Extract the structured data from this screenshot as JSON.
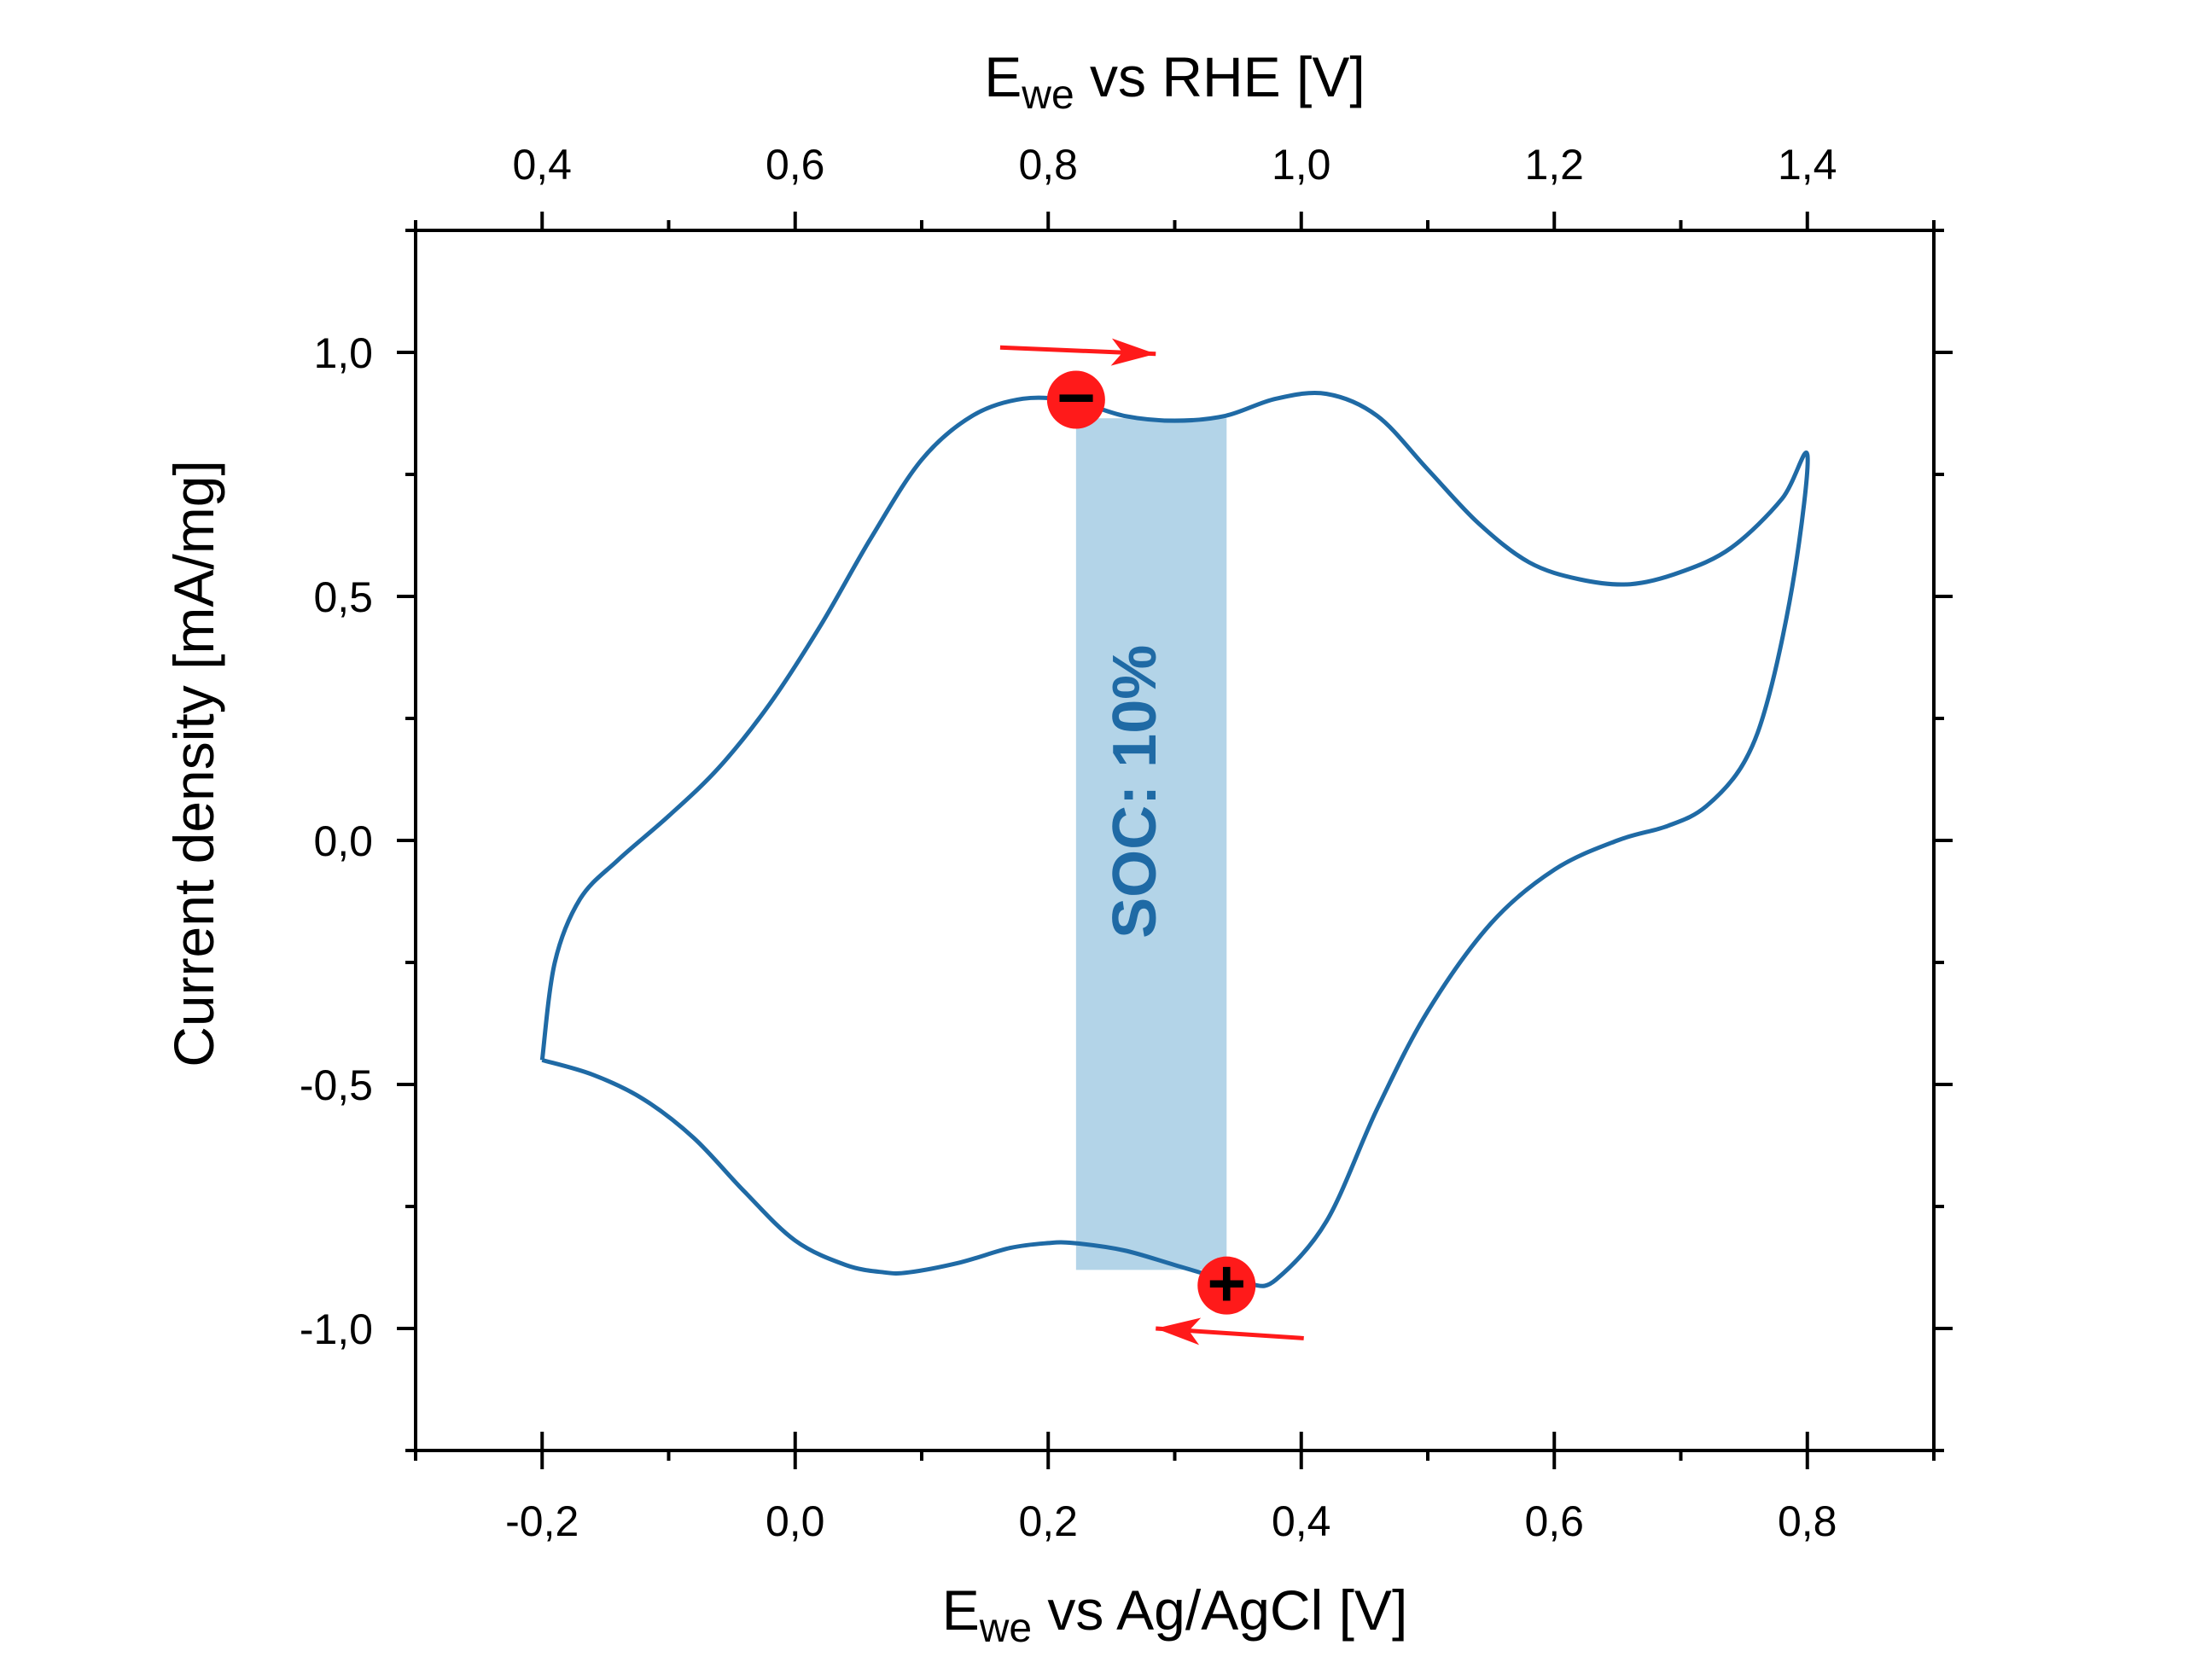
{
  "chart_data": {
    "type": "line",
    "title": "",
    "xlabel": {
      "main": "E",
      "sub": "we",
      "rest": " vs Ag/AgCl [V]"
    },
    "x2label": {
      "main": "E",
      "sub": "we",
      "rest": " vs RHE [V]"
    },
    "ylabel": "Current density [mA/mg]",
    "xlim": [
      -0.3,
      0.9
    ],
    "ylim": [
      -1.25,
      1.25
    ],
    "x_ticks": [
      -0.2,
      0.0,
      0.2,
      0.4,
      0.6,
      0.8
    ],
    "x_tick_labels": [
      "-0,2",
      "0,0",
      "0,2",
      "0,4",
      "0,6",
      "0,8"
    ],
    "x2_offset": 0.6,
    "x2_ticks": [
      0.4,
      0.6,
      0.8,
      1.0,
      1.2,
      1.4
    ],
    "x2_tick_labels": [
      "0,4",
      "0,6",
      "0,8",
      "1,0",
      "1,2",
      "1,4"
    ],
    "y_ticks": [
      -1.0,
      -0.5,
      0.0,
      0.5,
      1.0
    ],
    "y_tick_labels": [
      "-1,0",
      "-0,5",
      "0,0",
      "0,5",
      "1,0"
    ],
    "grid": false,
    "series": [
      {
        "color": "#1f6aa5",
        "anodic_x": [
          -0.2,
          -0.19,
          -0.17,
          -0.14,
          -0.1,
          -0.06,
          -0.02,
          0.02,
          0.06,
          0.1,
          0.14,
          0.18,
          0.22,
          0.26,
          0.3,
          0.34,
          0.38,
          0.42,
          0.46,
          0.5,
          0.54,
          0.58,
          0.62,
          0.66,
          0.7,
          0.74,
          0.78,
          0.8
        ],
        "anodic_y": [
          -0.45,
          -0.25,
          -0.12,
          -0.04,
          0.05,
          0.15,
          0.28,
          0.44,
          0.62,
          0.78,
          0.87,
          0.905,
          0.9,
          0.87,
          0.86,
          0.87,
          0.905,
          0.915,
          0.87,
          0.76,
          0.65,
          0.57,
          0.535,
          0.525,
          0.55,
          0.6,
          0.7,
          0.79
        ],
        "cathodic_x": [
          0.8,
          0.79,
          0.77,
          0.75,
          0.72,
          0.69,
          0.65,
          0.6,
          0.55,
          0.5,
          0.46,
          0.42,
          0.38,
          0.36,
          0.34,
          0.3,
          0.26,
          0.22,
          0.2,
          0.17,
          0.13,
          0.09,
          0.07,
          0.04,
          0.0,
          -0.04,
          -0.08,
          -0.12,
          -0.16,
          -0.2
        ],
        "cathodic_y": [
          0.79,
          0.55,
          0.3,
          0.16,
          0.07,
          0.03,
          0.0,
          -0.06,
          -0.17,
          -0.35,
          -0.55,
          -0.78,
          -0.9,
          -0.91,
          -0.9,
          -0.87,
          -0.84,
          -0.825,
          -0.825,
          -0.835,
          -0.865,
          -0.885,
          -0.885,
          -0.87,
          -0.82,
          -0.72,
          -0.61,
          -0.53,
          -0.48,
          -0.45
        ]
      }
    ],
    "shaded_region": {
      "x": [
        0.222,
        0.341
      ],
      "color": "#b3d4e8",
      "label": "SOC: 10%"
    },
    "markers": [
      {
        "symbol": "−",
        "x": 0.222,
        "y": 0.903,
        "arrow_from": [
          0.162,
          1.01
        ],
        "arrow_to": [
          0.285,
          0.997
        ]
      },
      {
        "symbol": "+",
        "x": 0.341,
        "y": -0.912,
        "arrow_from": [
          0.402,
          -1.02
        ],
        "arrow_to": [
          0.285,
          -1.0
        ]
      }
    ]
  }
}
